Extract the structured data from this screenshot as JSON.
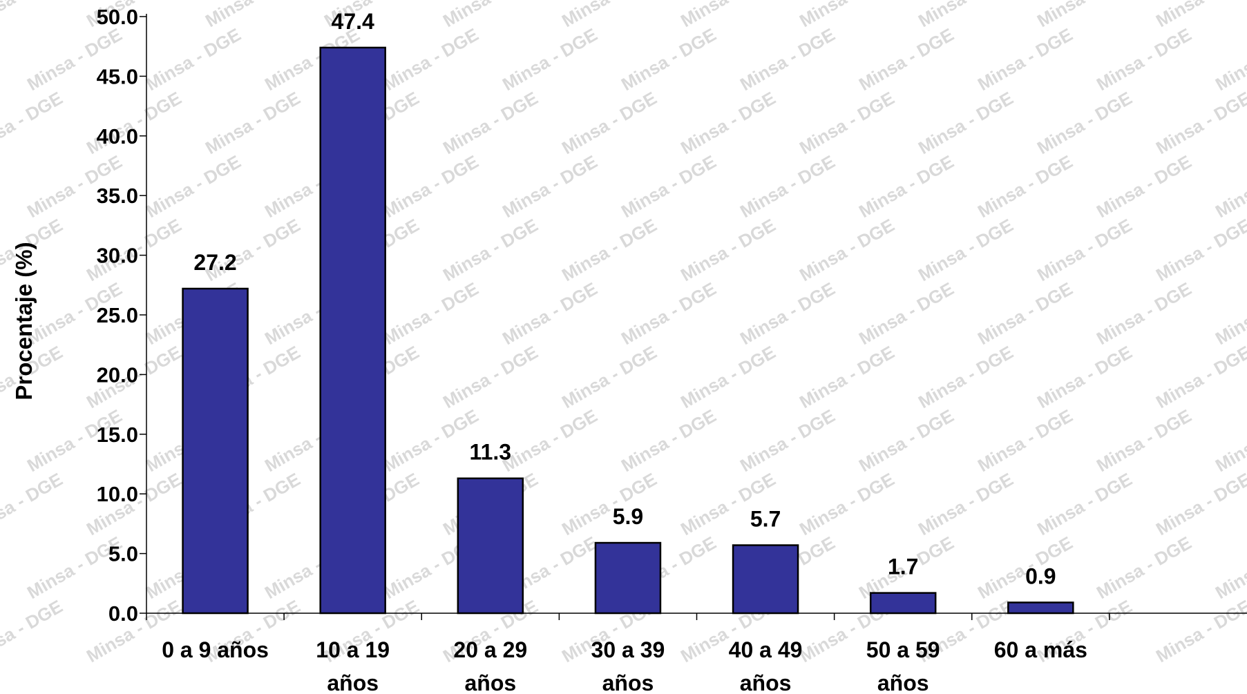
{
  "watermark": "Minsa - DGE",
  "chart_data": {
    "type": "bar",
    "ylabel": "Procentaje (%)",
    "xlabel": "",
    "ylim": [
      0,
      50
    ],
    "ytick_step": 5,
    "ytick_labels": [
      "0.0",
      "5.0",
      "10.0",
      "15.0",
      "20.0",
      "25.0",
      "30.0",
      "35.0",
      "40.0",
      "45.0",
      "50.0"
    ],
    "categories": [
      [
        "0 a 9 años"
      ],
      [
        "10 a 19",
        "años"
      ],
      [
        "20 a 29",
        "años"
      ],
      [
        "30 a 39",
        "años"
      ],
      [
        "40 a 49",
        "años"
      ],
      [
        "50 a 59",
        "años"
      ],
      [
        "60 a más"
      ]
    ],
    "values": [
      27.2,
      47.4,
      11.3,
      5.9,
      5.7,
      1.7,
      0.9
    ],
    "data_labels": [
      "27.2",
      "47.4",
      "11.3",
      "5.9",
      "5.7",
      "1.7",
      "0.9"
    ],
    "bar_color": "#333399",
    "bar_border_color": "#000000",
    "grid": false,
    "legend": "none"
  }
}
